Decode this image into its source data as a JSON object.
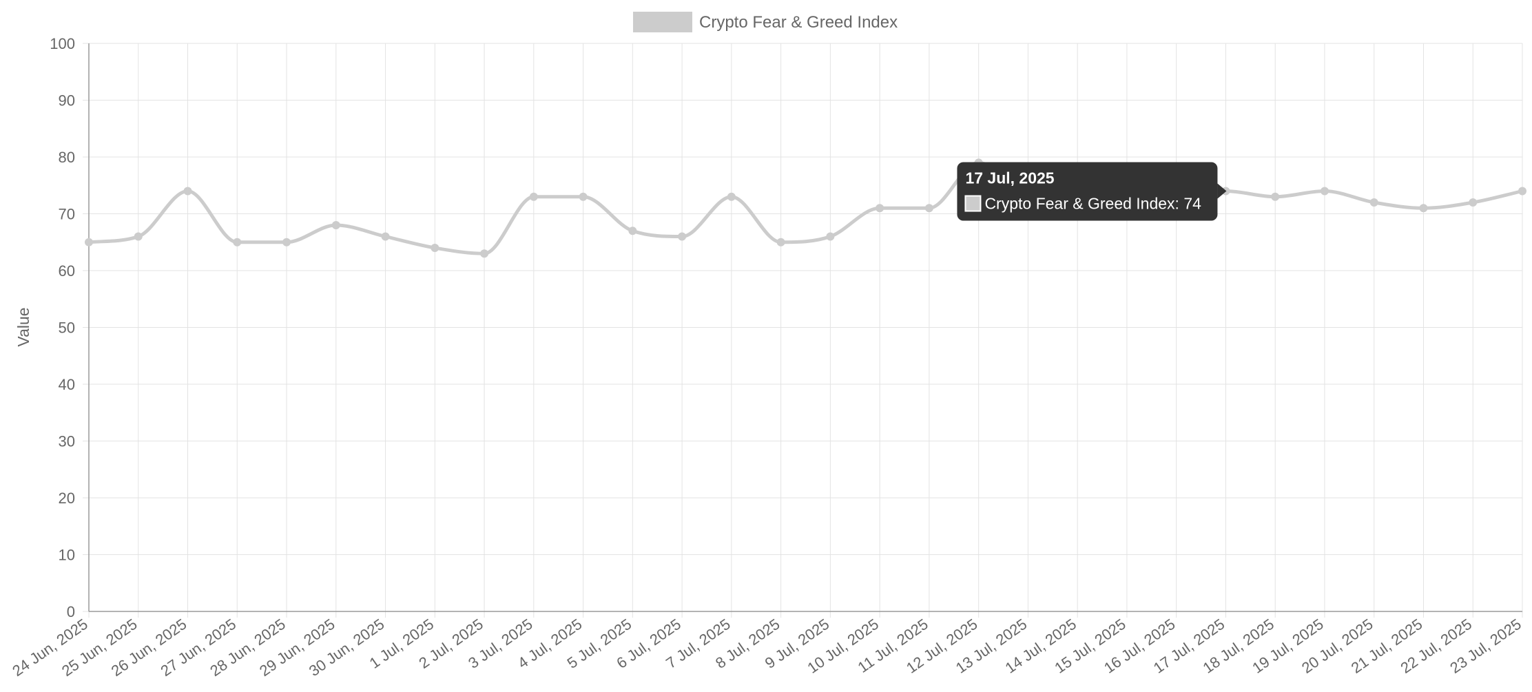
{
  "chart_data": {
    "type": "line",
    "title": "",
    "xlabel": "",
    "ylabel": "Value",
    "ylim": [
      0,
      100
    ],
    "y_ticks": [
      0,
      10,
      20,
      30,
      40,
      50,
      60,
      70,
      80,
      90,
      100
    ],
    "grid": true,
    "legend": {
      "placement": "top-center"
    },
    "colors": {
      "series": "#cccccc",
      "grid": "#e3e3e3",
      "axis": "#9a9a9a",
      "tick_text": "#666666",
      "tooltip_bg": "#333333",
      "tooltip_text": "#ffffff"
    },
    "categories": [
      "24 Jun, 2025",
      "25 Jun, 2025",
      "26 Jun, 2025",
      "27 Jun, 2025",
      "28 Jun, 2025",
      "29 Jun, 2025",
      "30 Jun, 2025",
      "1 Jul, 2025",
      "2 Jul, 2025",
      "3 Jul, 2025",
      "4 Jul, 2025",
      "5 Jul, 2025",
      "6 Jul, 2025",
      "7 Jul, 2025",
      "8 Jul, 2025",
      "9 Jul, 2025",
      "10 Jul, 2025",
      "11 Jul, 2025",
      "12 Jul, 2025",
      "13 Jul, 2025",
      "14 Jul, 2025",
      "15 Jul, 2025",
      "16 Jul, 2025",
      "17 Jul, 2025",
      "18 Jul, 2025",
      "19 Jul, 2025",
      "20 Jul, 2025",
      "21 Jul, 2025",
      "22 Jul, 2025",
      "23 Jul, 2025"
    ],
    "series": [
      {
        "name": "Crypto Fear & Greed Index",
        "values": [
          65,
          66,
          74,
          65,
          65,
          68,
          66,
          64,
          63,
          73,
          73,
          67,
          66,
          73,
          65,
          66,
          71,
          71,
          79,
          74,
          74,
          74,
          74,
          74,
          73,
          74,
          72,
          71,
          72,
          74
        ]
      }
    ],
    "tooltip": {
      "index": 23,
      "title": "17 Jul, 2025",
      "label": "Crypto Fear & Greed Index: 74"
    }
  }
}
